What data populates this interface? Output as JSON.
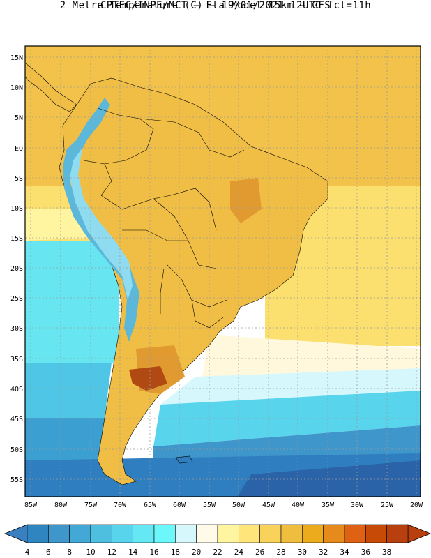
{
  "header": {
    "line1": "CPTEC/INPE/MCT  –   Eta Model 15km  –  GFS",
    "line2": "2 Metre Temperature (C) – 19/01/2021 12UTC fct=11h"
  },
  "axes": {
    "lat_labels": [
      "15N",
      "10N",
      "5N",
      "EQ",
      "5S",
      "10S",
      "15S",
      "20S",
      "25S",
      "30S",
      "35S",
      "40S",
      "45S",
      "50S",
      "55S"
    ],
    "lon_labels": [
      "85W",
      "80W",
      "75W",
      "70W",
      "65W",
      "60W",
      "55W",
      "50W",
      "45W",
      "40W",
      "35W",
      "30W",
      "25W",
      "20W"
    ]
  },
  "colorbar": {
    "values": [
      "4",
      "6",
      "8",
      "10",
      "12",
      "14",
      "16",
      "18",
      "20",
      "22",
      "24",
      "26",
      "28",
      "30",
      "32",
      "34",
      "36",
      "38"
    ],
    "colors": [
      "#3a7fc0",
      "#2f85c0",
      "#3f96cb",
      "#44a8d6",
      "#4fbfe0",
      "#58d4ec",
      "#66e8f4",
      "#6cf8fb",
      "#d6f8fc",
      "#fffbe8",
      "#fff4a0",
      "#ffe57a",
      "#f8d25a",
      "#efbe3f",
      "#ecab1d",
      "#e78a1c",
      "#df6113",
      "#c84a07",
      "#b8400e"
    ],
    "left_arrow_color": "#3a7fc0",
    "right_arrow_color": "#b8400e"
  },
  "palette": {
    "ocean_tropical": "#f2c24a",
    "ocean_subtropical": "#fbe070",
    "ocean_pale": "#fff8dc",
    "ocean_cool": "#67e6f2",
    "ocean_cooler": "#4fc6e6",
    "ocean_cold": "#3c9fd2",
    "ocean_colder": "#2f7ec0",
    "ocean_coldest": "#2a63a8",
    "land_warm": "#f0be44",
    "land_hot": "#e09a30",
    "land_hottest": "#b04a12",
    "andes": "#5bb8da"
  }
}
